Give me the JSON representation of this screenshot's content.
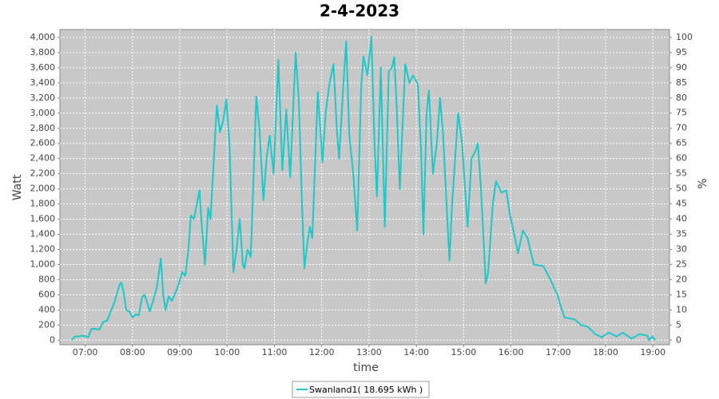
{
  "chart_data": {
    "type": "line",
    "title": "2-4-2023",
    "xlabel": "time",
    "ylabel": "Watt",
    "y2label": "%",
    "x": [
      "06:43",
      "06:47",
      "06:52",
      "06:57",
      "07:01",
      "07:04",
      "07:08",
      "07:13",
      "07:18",
      "07:23",
      "07:28",
      "07:37",
      "07:44",
      "07:46",
      "07:49",
      "07:52",
      "07:56",
      "08:00",
      "08:04",
      "08:08",
      "08:12",
      "08:15",
      "08:18",
      "08:22",
      "08:27",
      "08:31",
      "08:36",
      "08:39",
      "08:42",
      "08:46",
      "08:50",
      "08:55",
      "08:59",
      "09:03",
      "09:07",
      "09:11",
      "09:14",
      "09:18",
      "09:25",
      "09:28",
      "09:32",
      "09:36",
      "09:39",
      "09:47",
      "09:51",
      "09:55",
      "09:59",
      "10:03",
      "10:08",
      "10:12",
      "10:16",
      "10:20",
      "10:22",
      "10:26",
      "10:30",
      "10:37",
      "10:41",
      "10:46",
      "10:50",
      "10:54",
      "10:59",
      "11:05",
      "11:10",
      "11:15",
      "11:20",
      "11:27",
      "11:31",
      "11:35",
      "11:38",
      "11:42",
      "11:45",
      "11:48",
      "11:55",
      "12:01",
      "12:05",
      "12:10",
      "12:15",
      "12:19",
      "12:22",
      "12:27",
      "12:31",
      "12:35",
      "12:40",
      "12:45",
      "12:50",
      "12:53",
      "12:58",
      "13:03",
      "13:07",
      "13:10",
      "13:15",
      "13:20",
      "13:25",
      "13:29",
      "13:32",
      "13:35",
      "13:39",
      "13:46",
      "13:51",
      "13:56",
      "14:02",
      "14:06",
      "14:09",
      "14:13",
      "14:16",
      "14:21",
      "14:26",
      "14:30",
      "14:34",
      "14:42",
      "14:45",
      "14:53",
      "14:58",
      "15:05",
      "15:10",
      "15:15",
      "15:18",
      "15:22",
      "15:28",
      "15:31",
      "15:37",
      "15:41",
      "15:48",
      "15:54",
      "15:58",
      "16:09",
      "16:15",
      "16:21",
      "16:29",
      "16:41",
      "16:50",
      "16:59",
      "17:03",
      "17:08",
      "17:20",
      "17:29",
      "17:37",
      "17:47",
      "17:55",
      "18:04",
      "18:14",
      "18:22",
      "18:33",
      "18:43",
      "18:53",
      "18:55",
      "18:59",
      "19:03"
    ],
    "series": [
      {
        "name": "Swanland1( 18.695 kWh )",
        "color": "#1cc8c8",
        "values": [
          0,
          50,
          50,
          60,
          50,
          40,
          150,
          150,
          140,
          240,
          260,
          500,
          740,
          760,
          620,
          400,
          380,
          300,
          340,
          330,
          560,
          600,
          520,
          380,
          550,
          700,
          1080,
          600,
          400,
          580,
          520,
          640,
          750,
          900,
          850,
          1200,
          1650,
          1600,
          1980,
          1500,
          1000,
          1750,
          1600,
          3100,
          2750,
          2900,
          3180,
          2600,
          900,
          1200,
          1600,
          1000,
          950,
          1200,
          1100,
          3220,
          2800,
          1850,
          2400,
          2700,
          2200,
          3700,
          2250,
          3050,
          2150,
          3800,
          3150,
          1800,
          950,
          1300,
          1500,
          1350,
          3280,
          2350,
          3000,
          3400,
          3650,
          2800,
          2400,
          3300,
          3950,
          2700,
          2200,
          1450,
          3350,
          3750,
          3500,
          4010,
          2600,
          1900,
          3600,
          1500,
          3550,
          3600,
          3740,
          3100,
          2000,
          3650,
          3400,
          3500,
          3380,
          2500,
          1400,
          3000,
          3300,
          2200,
          2600,
          3200,
          2700,
          1050,
          1750,
          3000,
          2600,
          1500,
          2400,
          2500,
          2600,
          2000,
          750,
          900,
          1800,
          2100,
          1950,
          1980,
          1700,
          1150,
          1450,
          1350,
          1000,
          980,
          800,
          600,
          450,
          300,
          280,
          200,
          180,
          80,
          40,
          100,
          50,
          100,
          20,
          80,
          60,
          0,
          50,
          0
        ]
      }
    ],
    "xlim": [
      "06:28",
      "19:21"
    ],
    "xticks": [
      "07:00",
      "08:00",
      "09:00",
      "10:00",
      "11:00",
      "12:00",
      "13:00",
      "14:00",
      "15:00",
      "16:00",
      "17:00",
      "18:00",
      "19:00"
    ],
    "ylim": [
      -60,
      4105
    ],
    "yticks": [
      0,
      200,
      400,
      600,
      800,
      {
        "value": 1000,
        "label": "1,000"
      },
      {
        "value": 1200,
        "label": "1,200"
      },
      {
        "value": 1400,
        "label": "1,400"
      },
      {
        "value": 1600,
        "label": "1,600"
      },
      {
        "value": 1800,
        "label": "1,800"
      },
      {
        "value": 2000,
        "label": "2,000"
      },
      {
        "value": 2200,
        "label": "2,200"
      },
      {
        "value": 2400,
        "label": "2,400"
      },
      {
        "value": 2600,
        "label": "2,600"
      },
      {
        "value": 2800,
        "label": "2,800"
      },
      {
        "value": 3000,
        "label": "3,000"
      },
      {
        "value": 3200,
        "label": "3,200"
      },
      {
        "value": 3400,
        "label": "3,400"
      },
      {
        "value": 3600,
        "label": "3,600"
      },
      {
        "value": 3800,
        "label": "3,800"
      },
      {
        "value": 4000,
        "label": "4,000"
      }
    ],
    "y2lim": [
      -1.5,
      102.6
    ],
    "y2ticks": [
      0,
      5,
      10,
      15,
      20,
      25,
      30,
      35,
      40,
      45,
      50,
      55,
      60,
      65,
      70,
      75,
      80,
      85,
      90,
      95,
      100
    ],
    "grid": true
  }
}
